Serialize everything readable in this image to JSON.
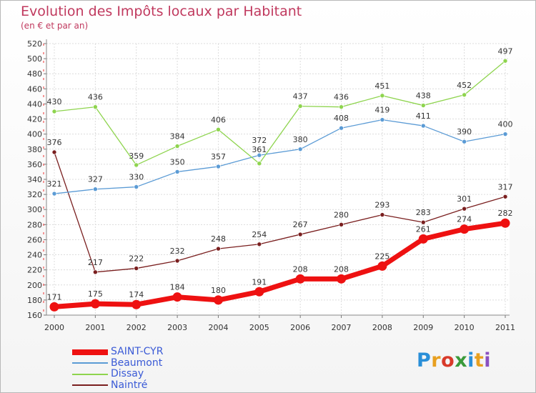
{
  "chart_data": {
    "type": "line",
    "title": "Evolution des Impôts locaux par Habitant",
    "subtitle": "(en € et par an)",
    "categories": [
      "2000",
      "2001",
      "2002",
      "2003",
      "2004",
      "2005",
      "2006",
      "2007",
      "2008",
      "2009",
      "2010",
      "2011"
    ],
    "ylim": [
      160,
      520
    ],
    "yticks": [
      160,
      180,
      200,
      220,
      240,
      260,
      280,
      300,
      320,
      340,
      360,
      380,
      400,
      420,
      440,
      460,
      480,
      500,
      520
    ],
    "grid": true,
    "series": [
      {
        "name": "SAINT-CYR",
        "color": "#ee1111",
        "values": [
          171,
          175,
          174,
          184,
          180,
          191,
          208,
          208,
          225,
          261,
          274,
          282
        ]
      },
      {
        "name": "Beaumont",
        "color": "#5b9bd5",
        "values": [
          321,
          327,
          330,
          350,
          357,
          372,
          380,
          408,
          419,
          411,
          390,
          400
        ],
        "labels": [
          "321",
          "327",
          "330",
          "350",
          "357",
          "",
          "380",
          "408",
          "419",
          "411",
          "390",
          "400"
        ]
      },
      {
        "name": "Dissay",
        "color": "#8ed44e",
        "values": [
          430,
          436,
          359,
          384,
          406,
          361,
          437,
          436,
          451,
          438,
          452,
          497
        ],
        "labels": [
          "430",
          "436",
          "359",
          "384",
          "406",
          "361",
          "437",
          "436",
          "451",
          "438",
          "452",
          "497"
        ]
      },
      {
        "name": "Naintré",
        "color": "#7a1f1f",
        "values": [
          376,
          217,
          222,
          232,
          248,
          254,
          267,
          280,
          293,
          283,
          301,
          317
        ]
      }
    ],
    "extra_labels": [
      {
        "text": "372",
        "category": "2005",
        "value": 372
      }
    ],
    "legend": [
      "SAINT-CYR",
      "Beaumont",
      "Dissay",
      "Naintré"
    ]
  },
  "logo": {
    "letters": [
      "P",
      "r",
      "o",
      "x",
      "i",
      "t",
      "i"
    ],
    "colors": [
      "#2a8fd8",
      "#e8a020",
      "#d83a2a",
      "#3a9a3a",
      "#2a8fd8",
      "#e8a020",
      "#8a50c0"
    ]
  }
}
